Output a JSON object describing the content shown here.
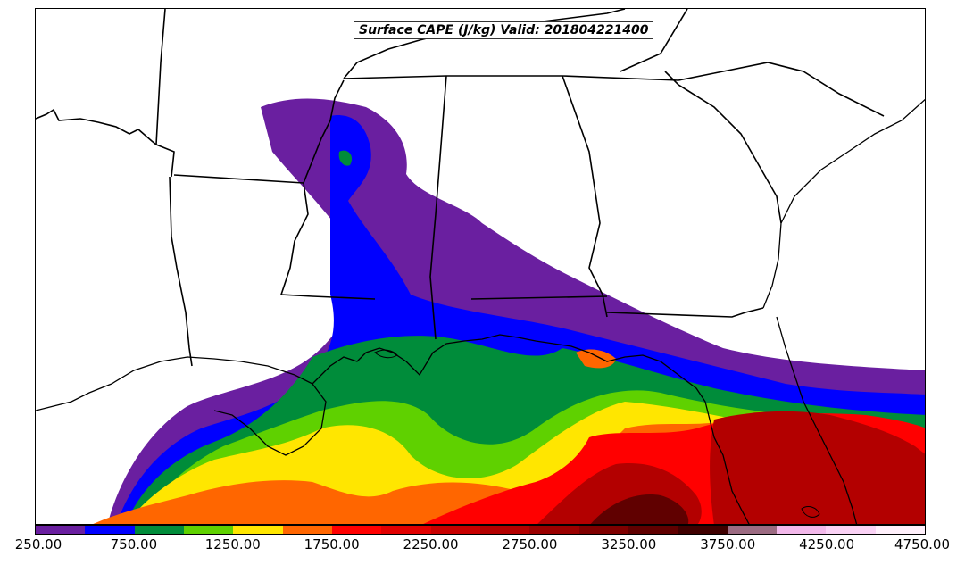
{
  "title": "Surface CAPE (J/kg) Valid: 201804221400",
  "colorbar": {
    "colors": [
      "#6a1fa0",
      "#0000ff",
      "#008c3a",
      "#5fd100",
      "#ffe600",
      "#ff6600",
      "#ff0000",
      "#e10000",
      "#c80000",
      "#b30000",
      "#9a0000",
      "#7f0000",
      "#600000",
      "#3f0000",
      "#9c6b82",
      "#f2b8ea",
      "#fad2f5",
      "#fff0fb"
    ],
    "tick_labels": [
      "250.00",
      "750.00",
      "1250.00",
      "1750.00",
      "2250.00",
      "2750.00",
      "3250.00",
      "3750.00",
      "4250.00",
      "4750.00"
    ]
  },
  "map": {
    "land_color": "#ffffff",
    "boundary_color": "#000000"
  }
}
